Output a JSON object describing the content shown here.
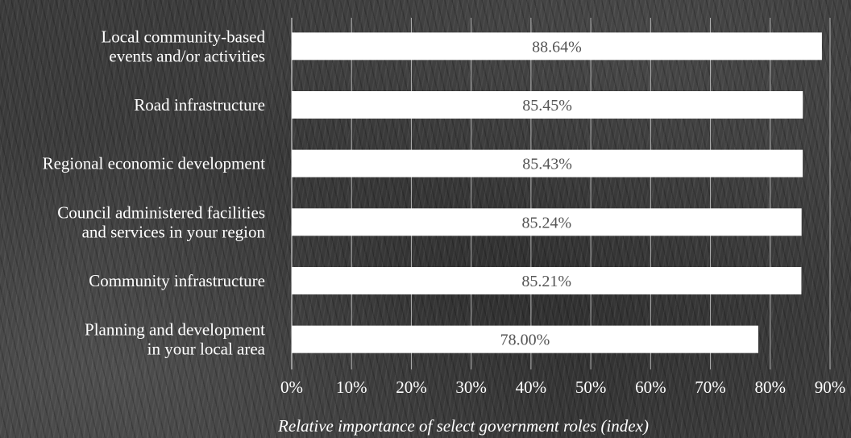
{
  "chart_data": {
    "type": "bar",
    "orientation": "horizontal",
    "categories": [
      [
        "Local community-based",
        "events and/or activities"
      ],
      [
        "Road infrastructure"
      ],
      [
        "Regional economic development"
      ],
      [
        "Council administered facilities",
        "and services in your region"
      ],
      [
        "Community infrastructure"
      ],
      [
        "Planning and development",
        "in your local area"
      ]
    ],
    "values": [
      88.64,
      85.45,
      85.43,
      85.24,
      85.21,
      78.0
    ],
    "value_labels": [
      "88.64%",
      "85.45%",
      "85.43%",
      "85.24%",
      "85.21%",
      "78.00%"
    ],
    "x_ticks": [
      "0%",
      "10%",
      "20%",
      "30%",
      "40%",
      "50%",
      "60%",
      "70%",
      "80%",
      "90%"
    ],
    "xlim": [
      0,
      90
    ],
    "xlabel": "Relative importance of select government roles (index)",
    "grid": true,
    "colors": {
      "bar": "#ffffff",
      "value_text": "#555555",
      "label_text": "#ffffff",
      "grid": "#d8d8d8"
    }
  }
}
